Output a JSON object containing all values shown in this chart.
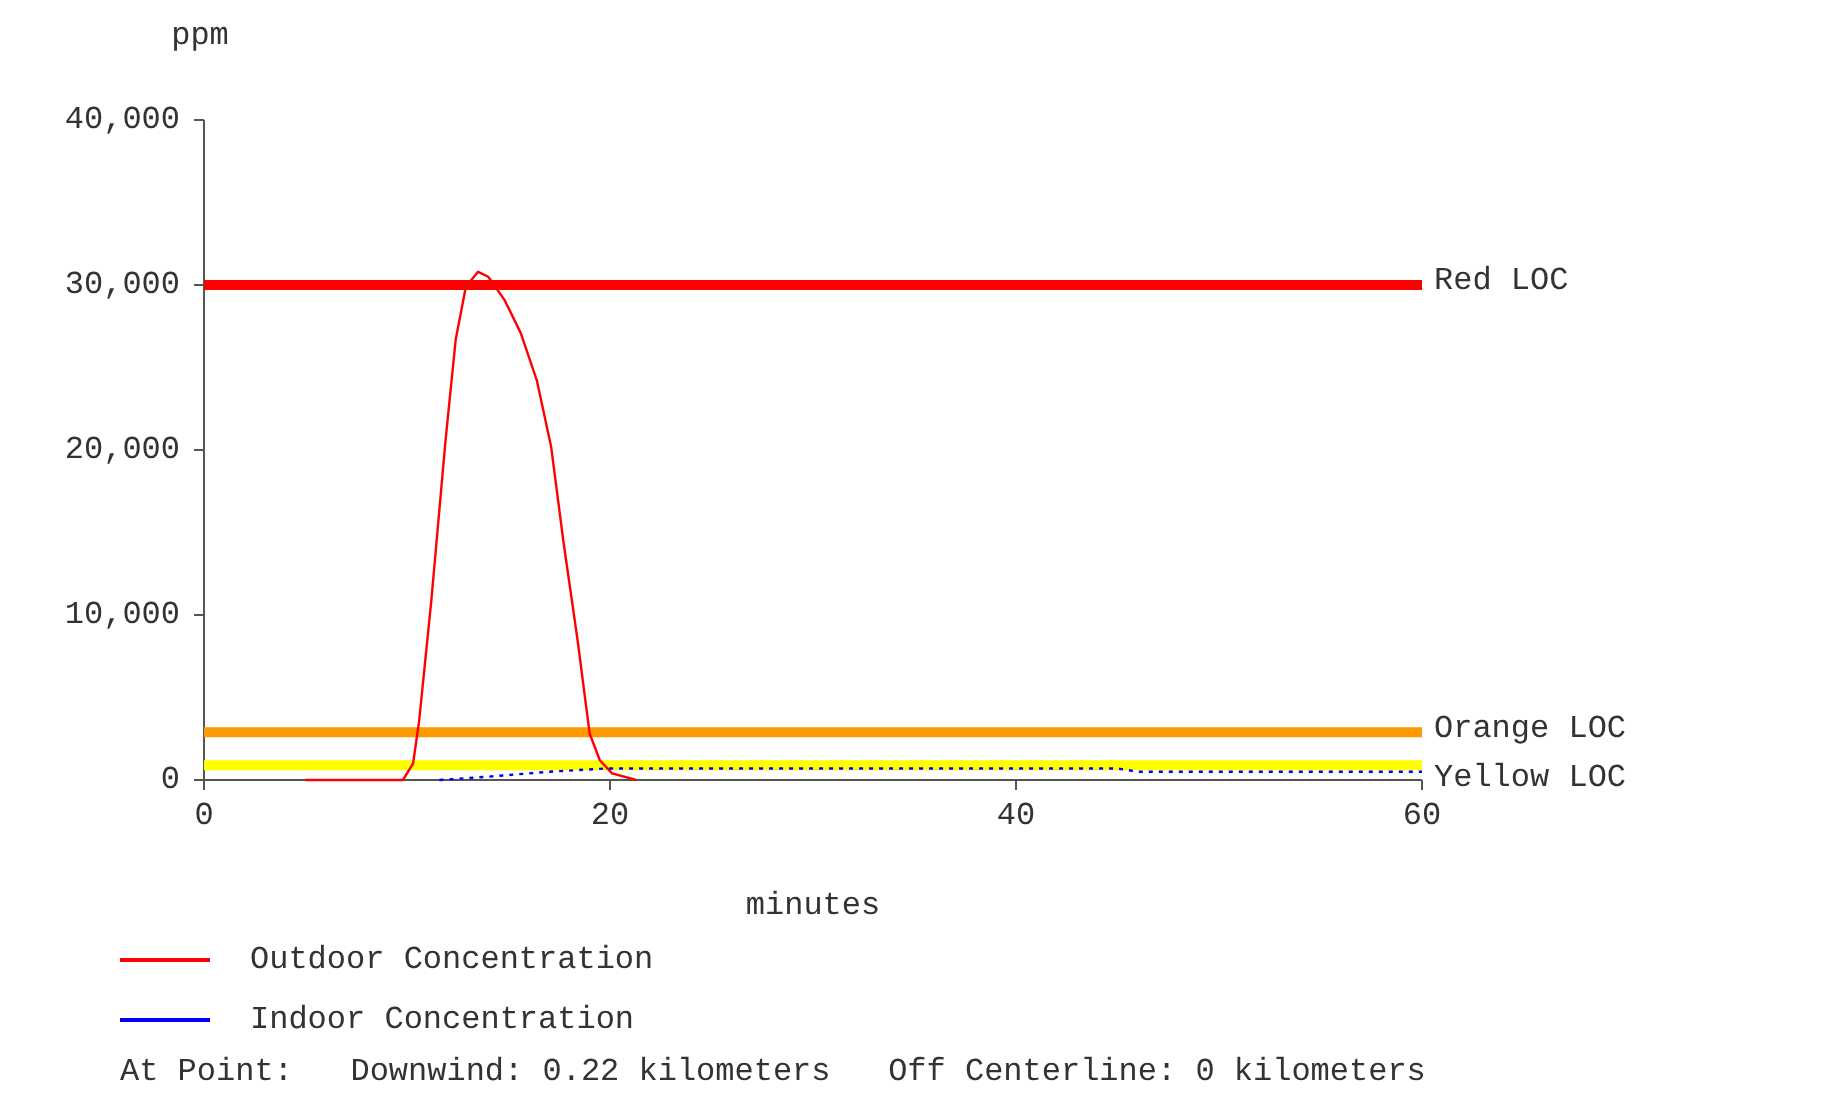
{
  "chart_data": {
    "type": "line",
    "ylabel": "ppm",
    "xlabel": "minutes",
    "xlim": [
      0,
      60
    ],
    "xticks": [
      0,
      20,
      40,
      60
    ],
    "ylim": [
      0,
      40000
    ],
    "yticks": [
      0,
      {
        "value": 10000,
        "label": "10,000"
      },
      {
        "value": 20000,
        "label": "20,000"
      },
      {
        "value": 30000,
        "label": "30,000"
      },
      {
        "value": 40000,
        "label": "40,000"
      }
    ],
    "grid": false,
    "legend": "bottom",
    "marker": "none",
    "series": [
      {
        "name": "Outdoor Concentration",
        "color": "#ff0000",
        "line_style": "solid",
        "x": [
          5,
          9.8,
          10.3,
          10.6,
          11.2,
          11.9,
          12.4,
          12.9,
          13.5,
          14.0,
          14.8,
          15.6,
          16.4,
          17.1,
          17.7,
          18.4,
          19.0,
          19.5,
          20.1,
          21.3
        ],
        "values": [
          0,
          0,
          1000,
          3600,
          10900,
          20600,
          26700,
          29900,
          30800,
          30500,
          29100,
          27100,
          24200,
          20200,
          14500,
          8500,
          2800,
          1200,
          400,
          0
        ]
      },
      {
        "name": "Indoor Concentration",
        "color": "#0000ff",
        "line_style": "dotted",
        "x": [
          11.6,
          14,
          17,
          19.8,
          30,
          45,
          46,
          60
        ],
        "values": [
          0,
          200,
          500,
          700,
          700,
          700,
          500,
          500
        ]
      }
    ],
    "ref_lines": [
      {
        "axis": "y",
        "value": 30000,
        "label": "Red LOC",
        "color": "#ff0000"
      },
      {
        "axis": "y",
        "value": 2900,
        "label": "Orange LOC",
        "color": "#ff9900"
      },
      {
        "axis": "y",
        "value": 900,
        "label": "Yellow LOC",
        "color": "#ffff00"
      }
    ],
    "annotations": [
      "At Point:   Downwind: 0.22 kilometers   Off Centerline: 0 kilometers"
    ]
  }
}
